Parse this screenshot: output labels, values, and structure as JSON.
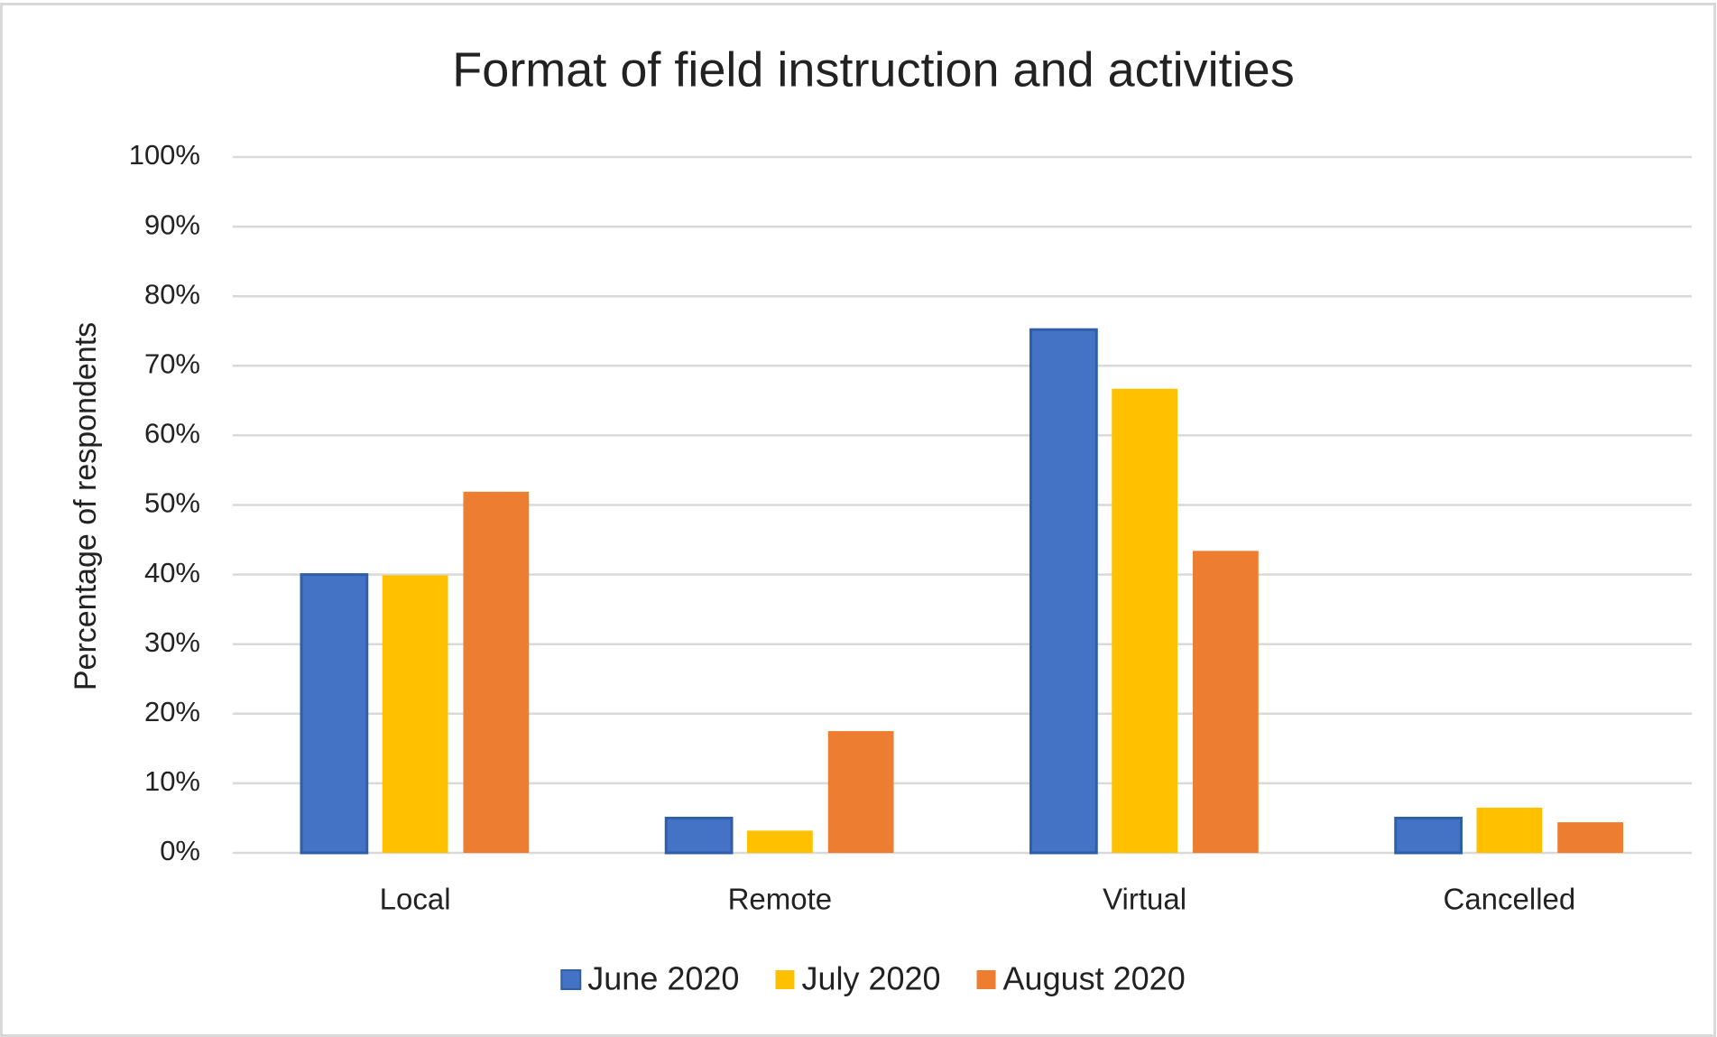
{
  "chart_data": {
    "type": "bar",
    "title": "Format of field instruction and activities",
    "y_label": "Percentage of respondents",
    "categories": [
      "Local",
      "Remote",
      "Virtual",
      "Cancelled"
    ],
    "series": [
      {
        "name": "June 2020",
        "color": "#4472c4",
        "values": [
          40,
          5,
          75.2,
          5
        ]
      },
      {
        "name": "July 2020",
        "color": "#ffc000",
        "values": [
          39.9,
          3.2,
          66.7,
          6.5
        ]
      },
      {
        "name": "August 2020",
        "color": "#ed7d31",
        "values": [
          51.9,
          17.5,
          43.4,
          4.4
        ]
      }
    ],
    "ylim": [
      0,
      100
    ],
    "yticks": [
      {
        "value": 0,
        "label": "0%"
      },
      {
        "value": 10,
        "label": "10%"
      },
      {
        "value": 20,
        "label": "20%"
      },
      {
        "value": 30,
        "label": "30%"
      },
      {
        "value": 40,
        "label": "40%"
      },
      {
        "value": 50,
        "label": "50%"
      },
      {
        "value": 60,
        "label": "60%"
      },
      {
        "value": 70,
        "label": "70%"
      },
      {
        "value": 80,
        "label": "80%"
      },
      {
        "value": 90,
        "label": "90%"
      },
      {
        "value": 100,
        "label": "100%"
      }
    ],
    "grid": true,
    "legend": "bottom"
  }
}
